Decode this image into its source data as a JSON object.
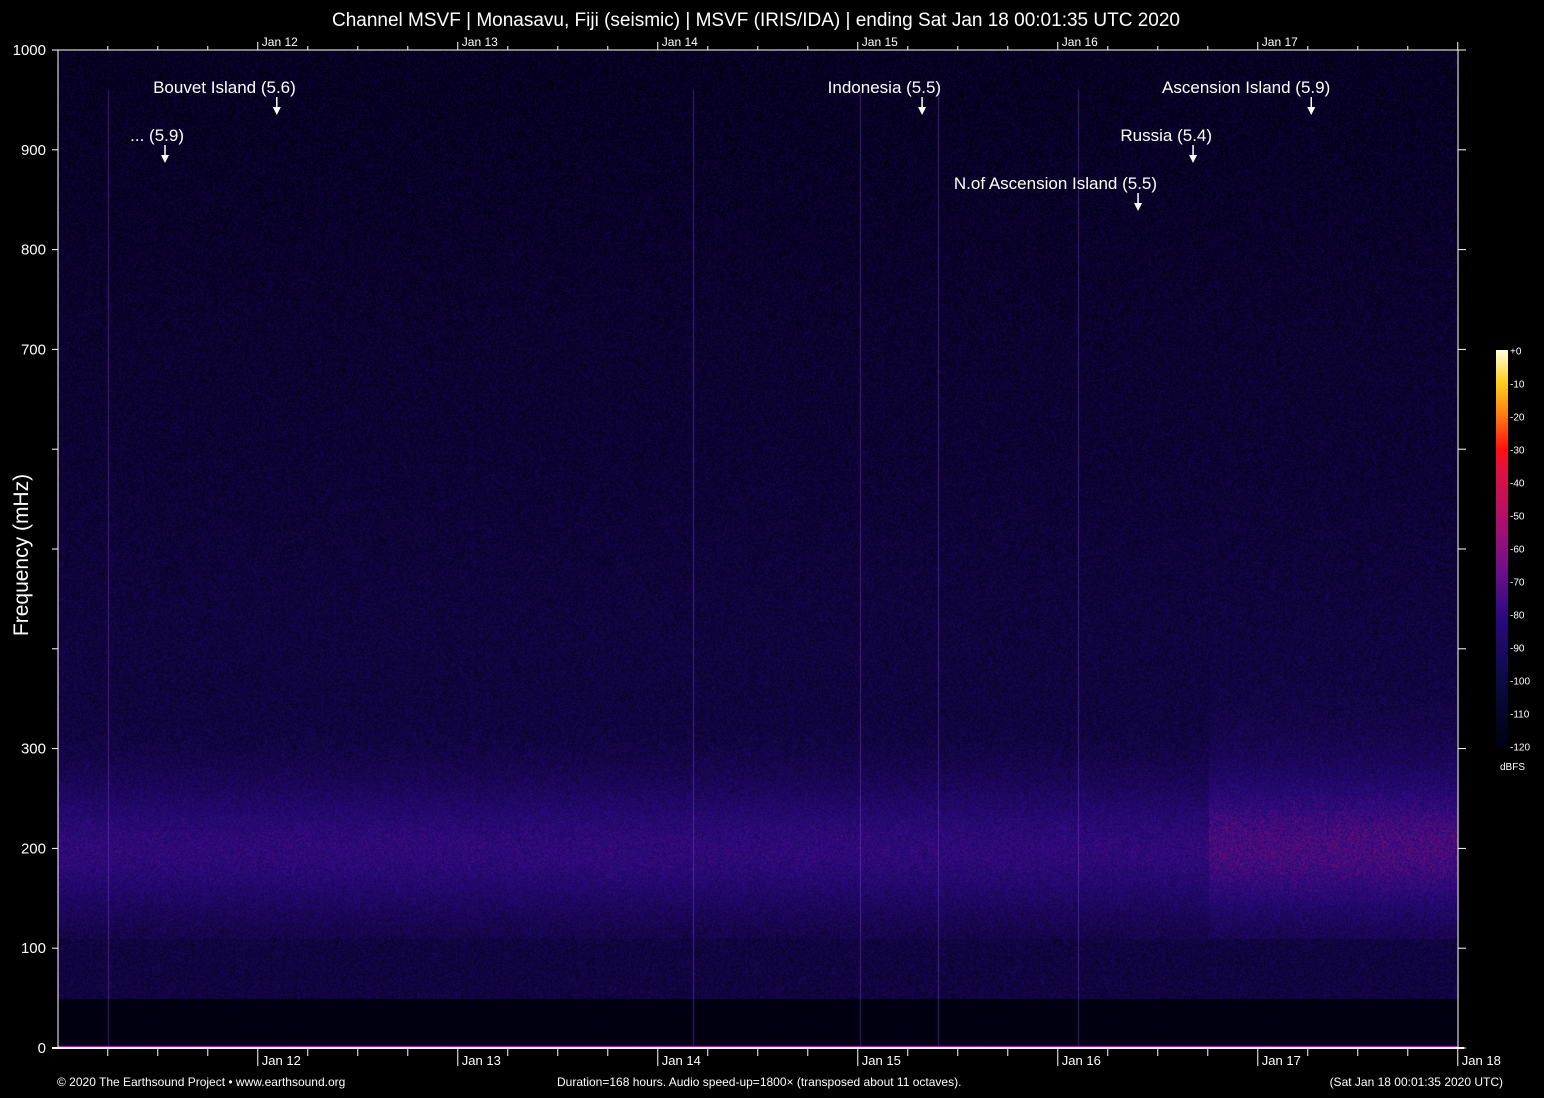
{
  "chart_data": {
    "type": "heatmap",
    "title": "Channel MSVF | Monasavu, Fiji (seismic) | MSVF (IRIS/IDA) | ending Sat Jan 18 00:01:35 UTC 2020",
    "ylabel": "Frequency (mHz)",
    "xlabel": "",
    "xlim": [
      "2020-01-11T00:01:35Z",
      "2020-01-18T00:01:35Z"
    ],
    "ylim": [
      0,
      1000
    ],
    "x_tick_labels": [
      "Jan 12",
      "Jan 13",
      "Jan 14",
      "Jan 15",
      "Jan 16",
      "Jan 17",
      "Jan 18"
    ],
    "x_tick_dates": [
      "2020-01-12T00:00Z",
      "2020-01-13T00:00Z",
      "2020-01-14T00:00Z",
      "2020-01-15T00:00Z",
      "2020-01-16T00:00Z",
      "2020-01-17T00:00Z",
      "2020-01-18T00:00Z"
    ],
    "y_ticks": [
      {
        "value": 0,
        "label": "0"
      },
      {
        "value": 100,
        "label": "100"
      },
      {
        "value": 200,
        "label": "200"
      },
      {
        "value": 300,
        "label": "300"
      },
      {
        "value": 400,
        "label": ""
      },
      {
        "value": 500,
        "label": ""
      },
      {
        "value": 600,
        "label": ""
      },
      {
        "value": 700,
        "label": "700"
      },
      {
        "value": 800,
        "label": "800"
      },
      {
        "value": 900,
        "label": "900"
      },
      {
        "value": 1000,
        "label": "1000"
      }
    ],
    "colorbar": {
      "unit": "dBFS",
      "range": [
        -120,
        0
      ],
      "tick_labels": [
        "+0",
        "-10",
        "-20",
        "-30",
        "-40",
        "-50",
        "-60",
        "-70",
        "-80",
        "-90",
        "-100",
        "-110",
        "-120"
      ],
      "colors": [
        "#000010",
        "#2a0a80",
        "#b0106a",
        "#ff1010",
        "#ff8010",
        "#ffffe0"
      ]
    },
    "events": [
      {
        "label": "... (5.9)",
        "time": "2020-01-11T12:52Z"
      },
      {
        "label": "Bouvet Island (5.6)",
        "time": "2020-01-12T02:17Z"
      },
      {
        "label": "Indonesia (5.5)",
        "time": "2020-01-15T07:43Z"
      },
      {
        "label": "N.of Ascension Island (5.5)",
        "time": "2020-01-16T09:38Z"
      },
      {
        "label": "Russia (5.4)",
        "time": "2020-01-16T16:14Z"
      },
      {
        "label": "Ascension Island (5.9)",
        "time": "2020-01-17T06:25Z"
      }
    ]
  },
  "footer": {
    "copyright": "© 2020 The Earthsound Project • www.earthsound.org",
    "info": "Duration=168 hours. Audio speed-up=1800× (transposed about 11 octaves).",
    "end_time": "(Sat Jan 18 00:01:35 2020 UTC)"
  }
}
